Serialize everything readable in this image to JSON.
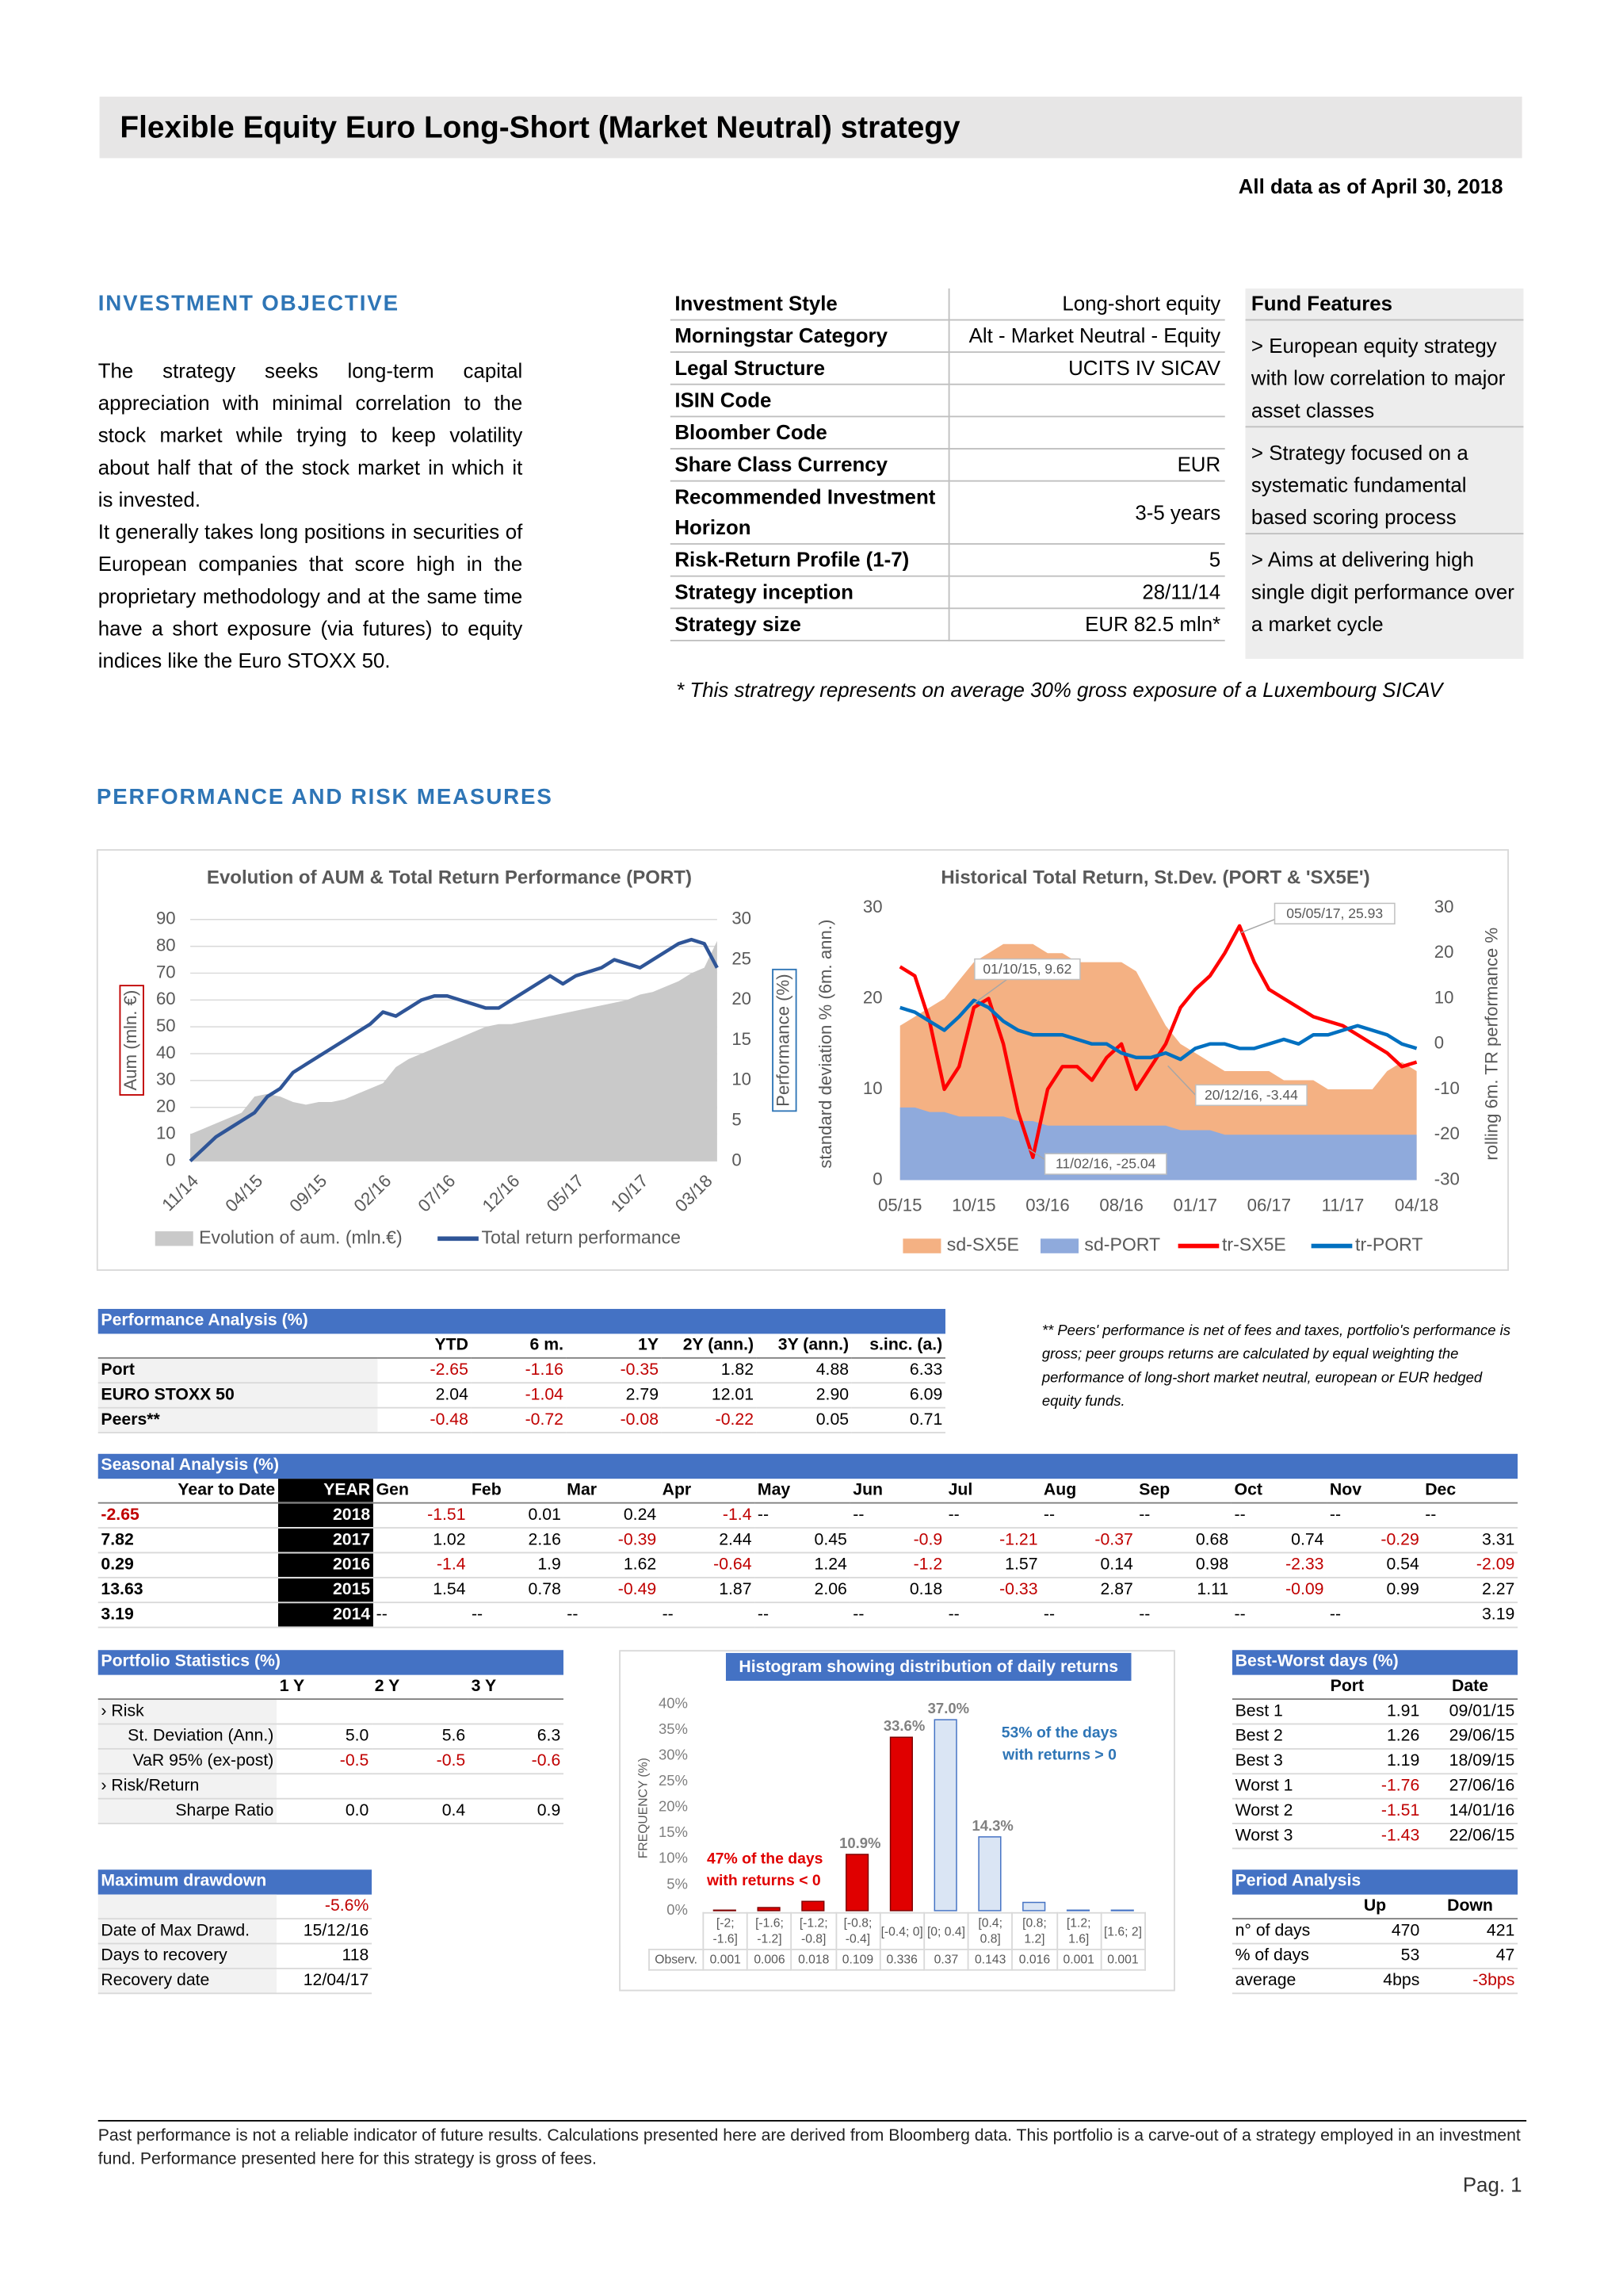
{
  "header": {
    "title": "Flexible Equity Euro Long-Short (Market Neutral) strategy",
    "date": "All data as of April 30, 2018"
  },
  "objective": {
    "heading": "INVESTMENT OBJECTIVE",
    "paragraphs": [
      "The strategy seeks long-term capital appreciation with minimal correlation to the stock market while trying to keep volatility about half that of the stock market in which it is invested.",
      "It generally takes long positions in securities of European companies that score high in the proprietary methodology and at the same time have a short exposure (via futures) to equity indices like the Euro STOXX 50."
    ]
  },
  "details": {
    "rows": [
      {
        "label": "Investment Style",
        "value": "Long-short equity"
      },
      {
        "label": "Morningstar Category",
        "value": "Alt - Market Neutral - Equity"
      },
      {
        "label": "Legal Structure",
        "value": "UCITS IV SICAV"
      },
      {
        "label": "ISIN Code"
      },
      {
        "label": "Bloomber Code"
      },
      {
        "label": "Share Class Currency",
        "value": "EUR"
      },
      {
        "label": "Recommended Investment Horizon",
        "value": "3-5 years"
      },
      {
        "label": "Risk-Return Profile (1-7)",
        "value": "5"
      },
      {
        "label": "Strategy inception",
        "value": "28/11/14"
      },
      {
        "label": "Strategy size",
        "value": "EUR 82.5 mln*"
      }
    ],
    "note": "* This stratregy represents on average 30% gross exposure of a Luxembourg SICAV"
  },
  "features": {
    "title": "Fund Features",
    "items": [
      "> European equity strategy with low correlation to major asset classes",
      "> Strategy focused on a systematic fundamental based scoring process",
      "> Aims at delivering high single digit performance over a market cycle"
    ]
  },
  "performance_heading": "PERFORMANCE AND RISK MEASURES",
  "chart_data": [
    {
      "type": "line",
      "title": "Evolution of AUM & Total Return Performance (PORT)",
      "ylabel": "Aum (mln. €)",
      "y2label": "Performance (%)",
      "categories": [
        "11/14",
        null,
        null,
        null,
        null,
        "04/15",
        null,
        null,
        null,
        null,
        "09/15",
        null,
        null,
        null,
        null,
        "02/16",
        null,
        null,
        null,
        null,
        "07/16",
        null,
        null,
        null,
        null,
        "12/16",
        null,
        null,
        null,
        null,
        "05/17",
        null,
        null,
        null,
        null,
        "10/17",
        null,
        null,
        null,
        null,
        "03/18",
        null
      ],
      "ylim": [
        0,
        90
      ],
      "yticks": [
        0,
        10,
        20,
        30,
        40,
        50,
        60,
        70,
        80,
        90
      ],
      "y2lim": [
        0,
        30
      ],
      "y2ticks": [
        0,
        5,
        10,
        15,
        20,
        25,
        30
      ],
      "grid": true,
      "series": [
        {
          "name": "Evolution of aum. (mln.€)",
          "color": "#c9c9c9",
          "style": "area",
          "values": [
            10,
            12,
            14,
            16,
            18,
            24,
            25,
            24,
            22,
            21,
            22,
            22,
            23,
            25,
            27,
            29,
            35,
            38,
            40,
            42,
            44,
            46,
            48,
            50,
            51,
            51,
            52,
            53,
            54,
            55,
            56,
            57,
            58,
            59,
            60,
            62,
            63,
            65,
            67,
            70,
            72,
            82
          ]
        },
        {
          "name": "Total return performance",
          "color": "#2f5597",
          "style": "line",
          "axis": "y2",
          "values": [
            0,
            1.5,
            3,
            4,
            5,
            6,
            8,
            9,
            11,
            12,
            13,
            14,
            15,
            16,
            17,
            18.5,
            18,
            19,
            20,
            20.5,
            20.5,
            20,
            19.5,
            19,
            19,
            20,
            21,
            22,
            23,
            22,
            23,
            23.5,
            24,
            25,
            24.5,
            24,
            25,
            26,
            27,
            27.5,
            27,
            24
          ]
        }
      ]
    },
    {
      "type": "line",
      "title": "Historical  Total Return, St.Dev. (PORT & 'SX5E')",
      "ylabel": "standard deviation % (6m. ann.)",
      "y2label": "rolling 6m. TR performance %",
      "categories": [
        "05/15",
        null,
        null,
        null,
        null,
        "10/15",
        null,
        null,
        null,
        null,
        "03/16",
        null,
        null,
        null,
        null,
        "08/16",
        null,
        null,
        null,
        null,
        "01/17",
        null,
        null,
        null,
        null,
        "06/17",
        null,
        null,
        null,
        null,
        "11/17",
        null,
        null,
        null,
        null,
        "04/18"
      ],
      "ylim": [
        0,
        30
      ],
      "yticks": [
        0,
        10,
        20,
        30
      ],
      "y2lim": [
        -30,
        30
      ],
      "y2ticks": [
        -30,
        -20,
        -10,
        0,
        10,
        20,
        30
      ],
      "grid": false,
      "series": [
        {
          "name": "sd-SX5E",
          "color": "#f4b183",
          "style": "area",
          "values": [
            17,
            18,
            19,
            20,
            22,
            24,
            25,
            26,
            26,
            26,
            25,
            25,
            24,
            24,
            24,
            24,
            23,
            20,
            17,
            15,
            14,
            13,
            12,
            12,
            12,
            12,
            11,
            11,
            11,
            10,
            10,
            10,
            10,
            12,
            13,
            12
          ]
        },
        {
          "name": "sd-PORT",
          "color": "#8faadc",
          "style": "area",
          "values": [
            8,
            8,
            7.5,
            7.5,
            7,
            7,
            7,
            7,
            6.5,
            6.5,
            6,
            6,
            6,
            6,
            6,
            6,
            6,
            6,
            6,
            5.5,
            5.5,
            5.5,
            5,
            5,
            5,
            5,
            5,
            5,
            5,
            5,
            5,
            5,
            5,
            5,
            5,
            5
          ]
        },
        {
          "name": "tr-SX5E",
          "color": "#ff0000",
          "style": "line",
          "axis": "y2",
          "values": [
            17,
            15,
            5,
            -10,
            -5,
            8,
            10,
            0,
            -15,
            -25,
            -10,
            -5,
            -5,
            -8,
            -3,
            0,
            -10,
            -5,
            0,
            8,
            12,
            15,
            20,
            26,
            18,
            12,
            10,
            8,
            6,
            5,
            4,
            2,
            0,
            -2,
            -5,
            -4
          ]
        },
        {
          "name": "tr-PORT",
          "color": "#0070c0",
          "style": "line",
          "axis": "y2",
          "values": [
            8,
            7,
            5,
            3,
            6,
            9.6,
            8,
            5,
            3,
            2,
            2,
            2,
            1,
            0,
            0,
            -2,
            -3,
            -3,
            -2,
            -3.4,
            -1,
            0,
            0,
            -1,
            -1,
            0,
            1,
            0,
            2,
            2,
            3,
            4,
            3,
            2,
            0,
            -1
          ]
        }
      ],
      "annotations": [
        "05/05/17, 25.93",
        "01/10/15, 9.62",
        "20/12/16, -3.44",
        "11/02/16, -25.04"
      ]
    },
    {
      "type": "bar",
      "title": "Histogram showing distribution of daily returns",
      "ylabel": "FREQUENCY (%)",
      "categories": [
        "[-2; -1.6]",
        "[-1.6; -1.2]",
        "[-1.2; -0.8]",
        "[-0.8; -0.4]",
        "[-0.4; 0]",
        "[0; 0.4]",
        "[0.4; 0.8]",
        "[0.8; 1.2]",
        "[1.2; 1.6]",
        "[1.6; 2]"
      ],
      "values": [
        0.1,
        0.6,
        1.8,
        10.9,
        33.6,
        37.0,
        14.3,
        1.6,
        0.1,
        0.1
      ],
      "value_labels": [
        null,
        null,
        null,
        "10.9%",
        "33.6%",
        "37.0%",
        "14.3%",
        null,
        null,
        null
      ],
      "colors": [
        "#e00000",
        "#e00000",
        "#e00000",
        "#e00000",
        "#e00000",
        "#dae5f4",
        "#dae5f4",
        "#dae5f4",
        "#dae5f4",
        "#dae5f4"
      ],
      "ylim": [
        0,
        40
      ],
      "yticks": [
        {
          "value": 0,
          "label": "0%"
        },
        {
          "value": 5,
          "label": "5%"
        },
        {
          "value": 10,
          "label": "10%"
        },
        {
          "value": 15,
          "label": "15%"
        },
        {
          "value": 20,
          "label": "20%"
        },
        {
          "value": 25,
          "label": "25%"
        },
        {
          "value": 30,
          "label": "30%"
        },
        {
          "value": 35,
          "label": "35%"
        },
        {
          "value": 40,
          "label": "40%"
        }
      ],
      "observations": {
        "label": "Observ.",
        "values": [
          "0.001",
          "0.006",
          "0.018",
          "0.109",
          "0.336",
          "0.37",
          "0.143",
          "0.016",
          "0.001",
          "0.001"
        ]
      },
      "annotations": [
        {
          "lines": [
            "47% of the days",
            "with returns < 0"
          ],
          "color": "#e00000"
        },
        {
          "lines": [
            "53% of the days",
            "with returns > 0"
          ],
          "color": "#2e75b6"
        }
      ]
    }
  ],
  "performance_table": {
    "title": "Performance Analysis (%)",
    "columns": [
      "YTD",
      "6 m.",
      "1Y",
      "2Y (ann.)",
      "3Y (ann.)",
      "s.inc. (a.)"
    ],
    "rows": [
      [
        "Port",
        "-2.65",
        "-1.16",
        "-0.35",
        "1.82",
        "4.88",
        "6.33"
      ],
      [
        "EURO STOXX 50",
        "2.04",
        "-1.04",
        "2.79",
        "12.01",
        "2.90",
        "6.09"
      ],
      [
        "Peers**",
        "-0.48",
        "-0.72",
        "-0.08",
        "-0.22",
        "0.05",
        "0.71"
      ]
    ]
  },
  "peers_note": "** Peers' performance is net of fees and taxes, portfolio's performance is gross; peer groups returns are calculated by equal weighting the performance of long-short market neutral, european or EUR hedged equity funds.",
  "seasonal_table": {
    "title": "Seasonal Analysis (%)",
    "columns": [
      "Year to Date",
      "YEAR",
      "Gen",
      "Feb",
      "Mar",
      "Apr",
      "May",
      "Jun",
      "Jul",
      "Aug",
      "Sep",
      "Oct",
      "Nov",
      "Dec"
    ],
    "rows": [
      [
        "-2.65",
        "2018",
        "-1.51",
        "0.01",
        "0.24",
        "-1.4",
        "--",
        "--",
        "--",
        "--",
        "--",
        "--",
        "--",
        "--"
      ],
      [
        "7.82",
        "2017",
        "1.02",
        "2.16",
        "-0.39",
        "2.44",
        "0.45",
        "-0.9",
        "-1.21",
        "-0.37",
        "0.68",
        "0.74",
        "-0.29",
        "3.31"
      ],
      [
        "0.29",
        "2016",
        "-1.4",
        "1.9",
        "1.62",
        "-0.64",
        "1.24",
        "-1.2",
        "1.57",
        "0.14",
        "0.98",
        "-2.33",
        "0.54",
        "-2.09"
      ],
      [
        "13.63",
        "2015",
        "1.54",
        "0.78",
        "-0.49",
        "1.87",
        "2.06",
        "0.18",
        "-0.33",
        "2.87",
        "1.11",
        "-0.09",
        "0.99",
        "2.27"
      ],
      [
        "3.19",
        "2014",
        "--",
        "--",
        "--",
        "--",
        "--",
        "--",
        "--",
        "--",
        "--",
        "--",
        "--",
        "3.19"
      ]
    ]
  },
  "portfolio_table": {
    "title": "Portfolio Statistics (%)",
    "columns": [
      "1 Y",
      "2 Y",
      "3 Y"
    ],
    "rows": [
      [
        "› Risk"
      ],
      [
        "St. Deviation (Ann.)",
        "5.0",
        "5.6",
        "6.3"
      ],
      [
        "VaR 95% (ex-post)",
        "-0.5",
        "-0.5",
        "-0.6"
      ],
      [
        "› Risk/Return"
      ],
      [
        "Sharpe Ratio",
        "0.0",
        "0.4",
        "0.9"
      ]
    ]
  },
  "drawdown_table": {
    "title": "Maximum drawdown",
    "rows": [
      [
        null,
        "-5.6%"
      ],
      [
        "Date of Max Drawd.",
        "15/12/16"
      ],
      [
        "Days to recovery",
        "118"
      ],
      [
        "Recovery date",
        "12/04/17"
      ]
    ]
  },
  "bestworst_table": {
    "title": "Best-Worst days (%)",
    "columns": [
      "Port",
      "Date"
    ],
    "rows": [
      [
        "Best 1",
        "1.91",
        "09/01/15"
      ],
      [
        "Best 2",
        "1.26",
        "29/06/15"
      ],
      [
        "Best 3",
        "1.19",
        "18/09/15"
      ],
      [
        "Worst 1",
        "-1.76",
        "27/06/16"
      ],
      [
        "Worst 2",
        "-1.51",
        "14/01/16"
      ],
      [
        "Worst 3",
        "-1.43",
        "22/06/15"
      ]
    ]
  },
  "period_table": {
    "title": "Period Analysis",
    "columns": [
      "Up",
      "Down"
    ],
    "rows": [
      [
        "n° of days",
        "470",
        "421"
      ],
      [
        "% of days",
        "53",
        "47"
      ],
      [
        "average",
        "4bps",
        "-3bps"
      ]
    ]
  },
  "footer": {
    "disclaimer": "Past performance is not a reliable indicator of future results. Calculations presented here are derived from Bloomberg data. This portfolio is a carve-out of a strategy employed in an investment fund. Performance presented here for this strategy is gross of fees.",
    "page": "Pag. 1"
  }
}
